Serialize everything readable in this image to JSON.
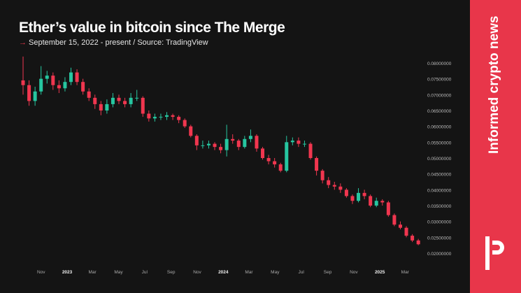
{
  "header": {
    "title": "Ether’s value in bitcoin since The Merge",
    "subtitle": "September 15, 2022 - present / Source: TradingView",
    "arrow_icon": "arrow-right-icon"
  },
  "sidebar": {
    "tagline": "Informed crypto news",
    "color": "#e8364a",
    "logo": "IP"
  },
  "chart_data": {
    "type": "candlestick",
    "title": "Ether’s value in bitcoin since The Merge",
    "ylim": [
      0.02,
      0.08
    ],
    "y_ticks": [
      "0.08000000",
      "0.07500000",
      "0.07000000",
      "0.06500000",
      "0.06000000",
      "0.05500000",
      "0.05000000",
      "0.04500000",
      "0.04000000",
      "0.03500000",
      "0.03000000",
      "0.02500000",
      "0.02000000"
    ],
    "x_ticks": [
      [
        "2022-11-01",
        "Nov"
      ],
      [
        "2023-01-01",
        "2023"
      ],
      [
        "2023-03-01",
        "Mar"
      ],
      [
        "2023-05-01",
        "May"
      ],
      [
        "2023-07-01",
        "Jul"
      ],
      [
        "2023-09-01",
        "Sep"
      ],
      [
        "2023-11-01",
        "Nov"
      ],
      [
        "2024-01-01",
        "2024"
      ],
      [
        "2024-03-01",
        "Mar"
      ],
      [
        "2024-05-01",
        "May"
      ],
      [
        "2024-07-01",
        "Jul"
      ],
      [
        "2024-09-01",
        "Sep"
      ],
      [
        "2024-11-01",
        "Nov"
      ],
      [
        "2025-01-01",
        "2025"
      ],
      [
        "2025-03-01",
        "Mar"
      ]
    ],
    "xlim": [
      "2022-09-15",
      "2025-03-30"
    ],
    "colors": {
      "up": "#26c6a0",
      "down": "#f0364f"
    },
    "grid": false,
    "candles": [
      [
        "2022-09-15",
        0.0745,
        0.082,
        0.07,
        0.073
      ],
      [
        "2022-09-29",
        0.073,
        0.0745,
        0.0665,
        0.068
      ],
      [
        "2022-10-13",
        0.068,
        0.0725,
        0.0665,
        0.071
      ],
      [
        "2022-10-27",
        0.071,
        0.079,
        0.07,
        0.075
      ],
      [
        "2022-11-10",
        0.075,
        0.0775,
        0.0735,
        0.076
      ],
      [
        "2022-11-24",
        0.076,
        0.077,
        0.0715,
        0.073
      ],
      [
        "2022-12-08",
        0.073,
        0.0745,
        0.0705,
        0.072
      ],
      [
        "2022-12-22",
        0.072,
        0.0755,
        0.071,
        0.074
      ],
      [
        "2023-01-05",
        0.074,
        0.0785,
        0.073,
        0.077
      ],
      [
        "2023-01-19",
        0.077,
        0.078,
        0.073,
        0.074
      ],
      [
        "2023-02-02",
        0.074,
        0.075,
        0.07,
        0.071
      ],
      [
        "2023-02-16",
        0.071,
        0.072,
        0.068,
        0.069
      ],
      [
        "2023-03-02",
        0.069,
        0.07,
        0.0655,
        0.067
      ],
      [
        "2023-03-16",
        0.067,
        0.068,
        0.0635,
        0.065
      ],
      [
        "2023-03-30",
        0.065,
        0.0685,
        0.064,
        0.067
      ],
      [
        "2023-04-13",
        0.067,
        0.0705,
        0.066,
        0.069
      ],
      [
        "2023-04-27",
        0.069,
        0.07,
        0.067,
        0.068
      ],
      [
        "2023-05-11",
        0.068,
        0.069,
        0.066,
        0.067
      ],
      [
        "2023-05-25",
        0.067,
        0.0705,
        0.066,
        0.069
      ],
      [
        "2023-06-08",
        0.069,
        0.0715,
        0.068,
        0.069
      ],
      [
        "2023-06-22",
        0.069,
        0.0695,
        0.063,
        0.064
      ],
      [
        "2023-07-06",
        0.064,
        0.065,
        0.0615,
        0.0625
      ],
      [
        "2023-07-20",
        0.0625,
        0.064,
        0.0615,
        0.063
      ],
      [
        "2023-08-03",
        0.063,
        0.064,
        0.062,
        0.063
      ],
      [
        "2023-08-17",
        0.063,
        0.0645,
        0.062,
        0.0635
      ],
      [
        "2023-08-31",
        0.0635,
        0.064,
        0.062,
        0.063
      ],
      [
        "2023-09-14",
        0.063,
        0.0635,
        0.061,
        0.062
      ],
      [
        "2023-09-28",
        0.062,
        0.0625,
        0.0595,
        0.06
      ],
      [
        "2023-10-12",
        0.06,
        0.0605,
        0.0565,
        0.057
      ],
      [
        "2023-10-26",
        0.057,
        0.0575,
        0.0525,
        0.054
      ],
      [
        "2023-11-09",
        0.054,
        0.0555,
        0.053,
        0.054
      ],
      [
        "2023-11-23",
        0.054,
        0.0555,
        0.053,
        0.0545
      ],
      [
        "2023-12-07",
        0.0545,
        0.055,
        0.0525,
        0.0535
      ],
      [
        "2023-12-21",
        0.0535,
        0.0545,
        0.0515,
        0.0525
      ],
      [
        "2024-01-04",
        0.0525,
        0.0605,
        0.0505,
        0.056
      ],
      [
        "2024-01-18",
        0.056,
        0.0575,
        0.0545,
        0.0555
      ],
      [
        "2024-02-01",
        0.0555,
        0.056,
        0.0525,
        0.0535
      ],
      [
        "2024-02-15",
        0.0535,
        0.057,
        0.053,
        0.056
      ],
      [
        "2024-02-29",
        0.056,
        0.059,
        0.055,
        0.057
      ],
      [
        "2024-03-14",
        0.057,
        0.0575,
        0.052,
        0.053
      ],
      [
        "2024-03-28",
        0.053,
        0.0535,
        0.0495,
        0.05
      ],
      [
        "2024-04-11",
        0.05,
        0.051,
        0.048,
        0.049
      ],
      [
        "2024-04-25",
        0.049,
        0.05,
        0.047,
        0.048
      ],
      [
        "2024-05-09",
        0.048,
        0.0485,
        0.0455,
        0.046
      ],
      [
        "2024-05-23",
        0.046,
        0.057,
        0.0455,
        0.055
      ],
      [
        "2024-06-06",
        0.055,
        0.0565,
        0.054,
        0.0555
      ],
      [
        "2024-06-20",
        0.0555,
        0.0565,
        0.0535,
        0.0545
      ],
      [
        "2024-07-04",
        0.0545,
        0.0555,
        0.0535,
        0.0545
      ],
      [
        "2024-07-18",
        0.0545,
        0.055,
        0.0495,
        0.05
      ],
      [
        "2024-08-01",
        0.05,
        0.0505,
        0.0445,
        0.046
      ],
      [
        "2024-08-15",
        0.046,
        0.0465,
        0.042,
        0.043
      ],
      [
        "2024-08-29",
        0.043,
        0.044,
        0.0405,
        0.0415
      ],
      [
        "2024-09-12",
        0.0415,
        0.0425,
        0.04,
        0.041
      ],
      [
        "2024-09-26",
        0.041,
        0.042,
        0.039,
        0.04
      ],
      [
        "2024-10-10",
        0.04,
        0.0405,
        0.0375,
        0.038
      ],
      [
        "2024-10-24",
        0.038,
        0.0385,
        0.0355,
        0.0365
      ],
      [
        "2024-11-07",
        0.0365,
        0.0405,
        0.036,
        0.039
      ],
      [
        "2024-11-21",
        0.039,
        0.04,
        0.037,
        0.038
      ],
      [
        "2024-12-05",
        0.038,
        0.0385,
        0.0345,
        0.035
      ],
      [
        "2024-12-19",
        0.035,
        0.0375,
        0.0345,
        0.0365
      ],
      [
        "2025-01-02",
        0.0365,
        0.037,
        0.035,
        0.036
      ],
      [
        "2025-01-16",
        0.036,
        0.0365,
        0.0315,
        0.032
      ],
      [
        "2025-01-30",
        0.032,
        0.0325,
        0.0285,
        0.029
      ],
      [
        "2025-02-13",
        0.029,
        0.03,
        0.0275,
        0.028
      ],
      [
        "2025-02-27",
        0.028,
        0.0285,
        0.025,
        0.0255
      ],
      [
        "2025-03-13",
        0.0255,
        0.026,
        0.0235,
        0.024
      ],
      [
        "2025-03-27",
        0.024,
        0.0245,
        0.0225,
        0.0228
      ]
    ]
  }
}
